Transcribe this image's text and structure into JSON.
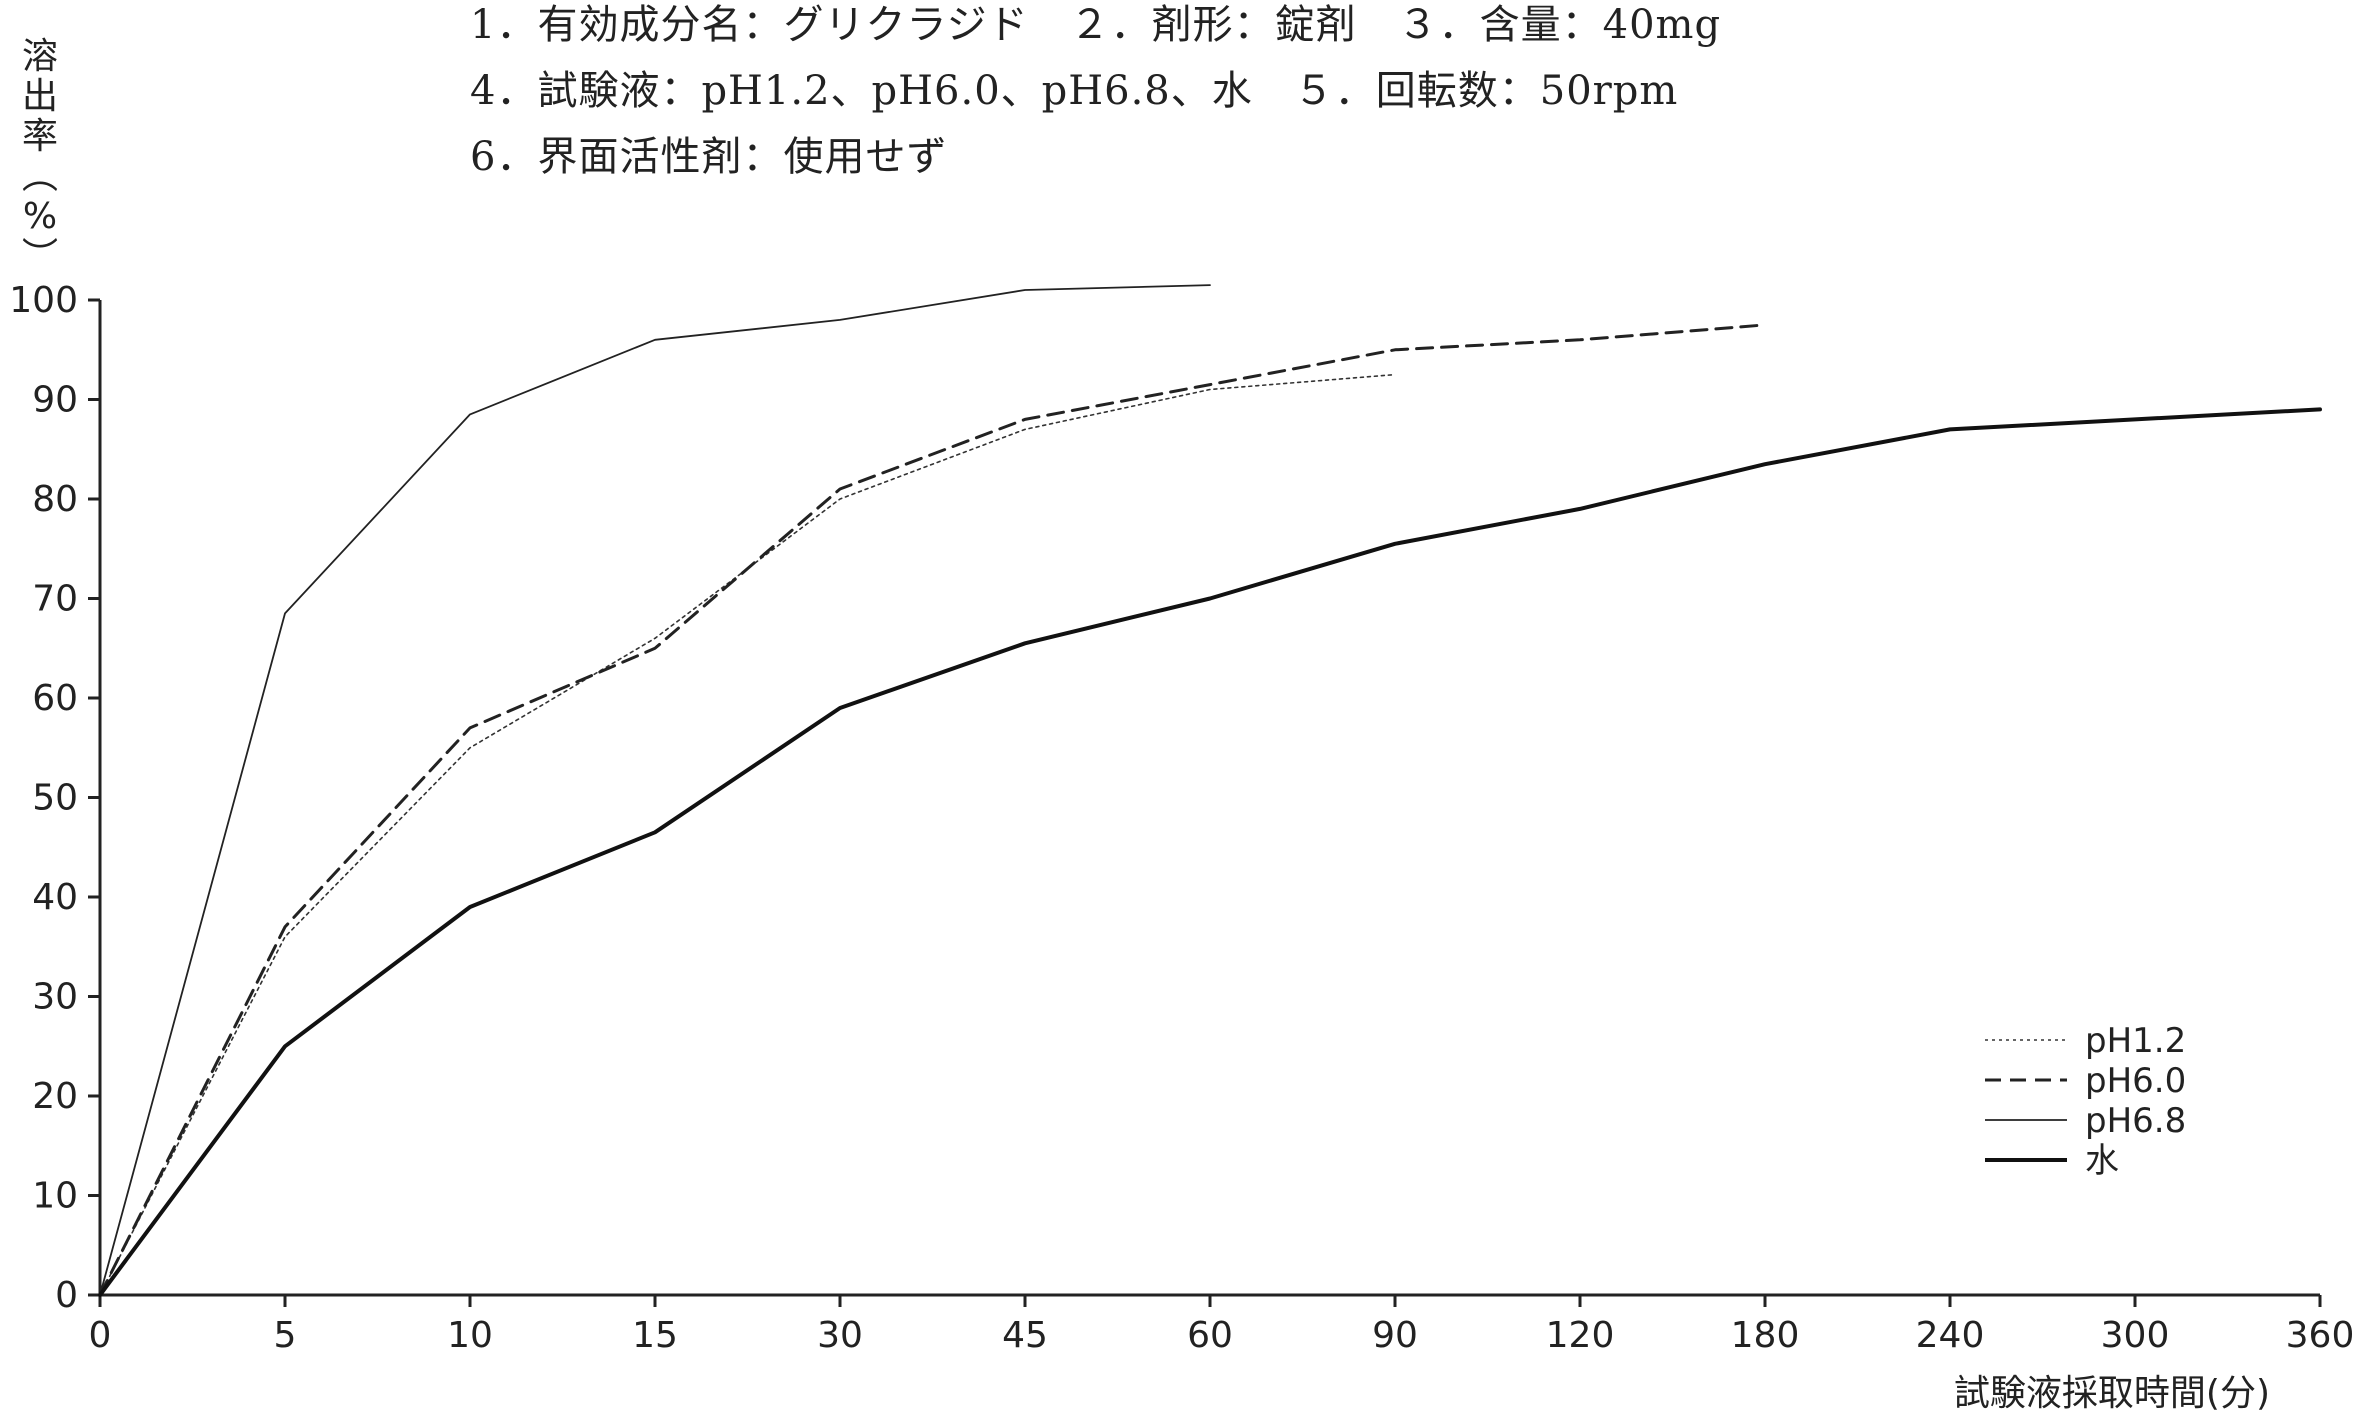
{
  "header": {
    "lines": [
      "1．有効成分名：グリクラジド　２．剤形：錠剤　３．含量：40mg",
      "4．試験液：pH1.2、pH6.0、pH6.8、水　５．回転数：50rpm",
      "6．界面活性剤：使用せず"
    ]
  },
  "chart_data": {
    "type": "line",
    "title": "",
    "ylabel": "溶出率(%)",
    "xlabel": "試験液採取時間(分)",
    "x_categories": [
      0,
      5,
      10,
      15,
      30,
      45,
      60,
      90,
      120,
      180,
      240,
      300,
      360
    ],
    "x_scale": "categorical (equally spaced sampling times)",
    "ylim": [
      0,
      100
    ],
    "yticks": [
      0,
      10,
      20,
      30,
      40,
      50,
      60,
      70,
      80,
      90,
      100
    ],
    "grid": false,
    "legend_position": "bottom-right",
    "series": [
      {
        "name": "pH1.2",
        "style": "dotted",
        "color": "#333333",
        "x": [
          0,
          5,
          10,
          15,
          30,
          45,
          60,
          90
        ],
        "y": [
          0,
          36,
          55,
          66,
          80,
          87,
          91,
          92.5
        ]
      },
      {
        "name": "pH6.0",
        "style": "dashed",
        "color": "#222222",
        "x": [
          0,
          5,
          10,
          15,
          30,
          45,
          60,
          90,
          120,
          180
        ],
        "y": [
          0,
          37,
          57,
          65,
          81,
          88,
          91.5,
          95,
          96,
          97.5
        ]
      },
      {
        "name": "pH6.8",
        "style": "thin",
        "color": "#222222",
        "x": [
          0,
          5,
          10,
          15,
          30,
          45,
          60
        ],
        "y": [
          0,
          68.5,
          88.5,
          96,
          98,
          101,
          101.5
        ]
      },
      {
        "name": "水",
        "style": "thick",
        "color": "#111111",
        "x": [
          0,
          5,
          10,
          15,
          30,
          45,
          60,
          90,
          120,
          180,
          240,
          300,
          360
        ],
        "y": [
          0,
          25,
          39,
          46.5,
          59,
          65.5,
          70,
          75.5,
          79,
          83.5,
          87,
          88,
          89
        ]
      }
    ]
  }
}
